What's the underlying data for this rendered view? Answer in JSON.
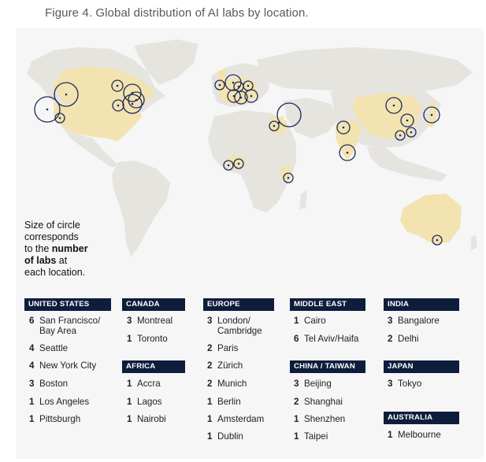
{
  "title": "Figure 4. Global distribution of AI labs by location.",
  "note": {
    "line1": "Size of circle",
    "line2": "corresponds",
    "line3": "to the",
    "bold1": "number",
    "bold2": "of labs",
    "line4": "at",
    "line5": "each location."
  },
  "colors": {
    "highlight_country": "#f3e3b0",
    "land": "#e6e4df",
    "circle": "#1c2a5a",
    "header_bg": "#0f1d3c"
  },
  "regions": {
    "us": {
      "header": "UNITED STATES",
      "items": [
        {
          "n": "6",
          "city": "San Francisco/",
          "city2": "Bay Area"
        },
        {
          "n": "4",
          "city": "Seattle"
        },
        {
          "n": "4",
          "city": "New York City"
        },
        {
          "n": "3",
          "city": "Boston"
        },
        {
          "n": "1",
          "city": "Los Angeles"
        },
        {
          "n": "1",
          "city": "Pittsburgh"
        }
      ]
    },
    "canada": {
      "header": "CANADA",
      "items": [
        {
          "n": "3",
          "city": "Montreal"
        },
        {
          "n": "1",
          "city": "Toronto"
        }
      ]
    },
    "africa": {
      "header": "AFRICA",
      "items": [
        {
          "n": "1",
          "city": "Accra"
        },
        {
          "n": "1",
          "city": "Lagos"
        },
        {
          "n": "1",
          "city": "Nairobi"
        }
      ]
    },
    "europe": {
      "header": "EUROPE",
      "items": [
        {
          "n": "3",
          "city": "London/",
          "city2": "Cambridge"
        },
        {
          "n": "2",
          "city": "Paris"
        },
        {
          "n": "2",
          "city": "Zürich"
        },
        {
          "n": "2",
          "city": "Munich"
        },
        {
          "n": "1",
          "city": "Berlin"
        },
        {
          "n": "1",
          "city": "Amsterdam"
        },
        {
          "n": "1",
          "city": "Dublin"
        }
      ]
    },
    "middle_east": {
      "header": "MIDDLE EAST",
      "items": [
        {
          "n": "1",
          "city": "Cairo"
        },
        {
          "n": "6",
          "city": "Tel Aviv/Haifa"
        }
      ]
    },
    "china": {
      "header": "CHINA / TAIWAN",
      "items": [
        {
          "n": "3",
          "city": "Beijing"
        },
        {
          "n": "2",
          "city": "Shanghai"
        },
        {
          "n": "1",
          "city": "Shenzhen"
        },
        {
          "n": "1",
          "city": "Taipei"
        }
      ]
    },
    "india": {
      "header": "INDIA",
      "items": [
        {
          "n": "3",
          "city": "Bangalore"
        },
        {
          "n": "2",
          "city": "Delhi"
        }
      ]
    },
    "japan": {
      "header": "JAPAN",
      "items": [
        {
          "n": "3",
          "city": "Tokyo"
        }
      ]
    },
    "australia": {
      "header": "AUSTRALIA",
      "items": [
        {
          "n": "1",
          "city": "Melbourne"
        }
      ]
    }
  }
}
